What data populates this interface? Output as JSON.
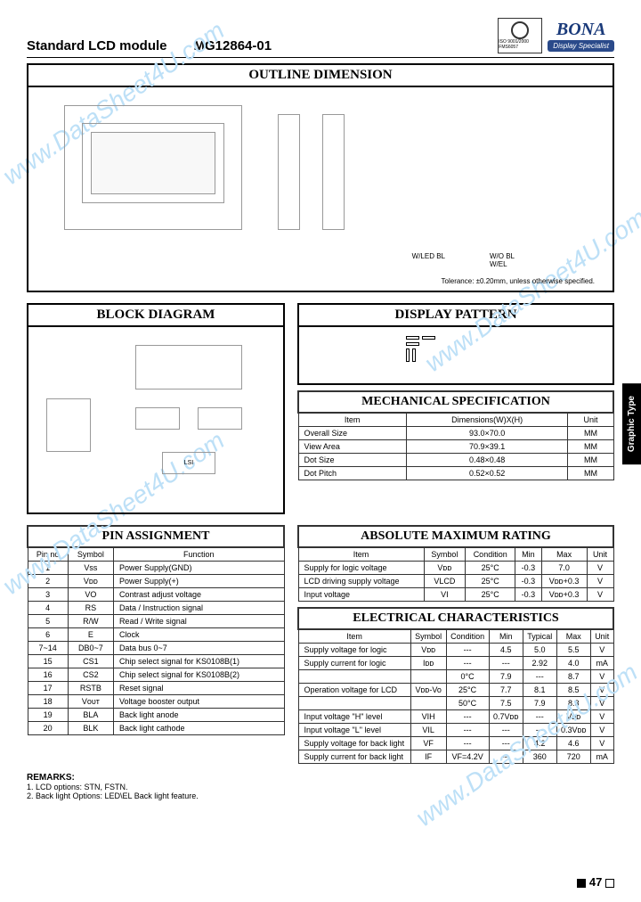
{
  "header": {
    "doc_title": "Standard LCD module",
    "part_no": "MG12864-01",
    "logo_name": "BONA",
    "logo_sub": "Display Specialist",
    "cert_text": "ISO 9001/2000 FMS6057"
  },
  "watermark": "www.DataSheet4U.com",
  "side_tab": "Graphic Type",
  "sections": {
    "outline": "OUTLINE DIMENSION",
    "block": "BLOCK DIAGRAM",
    "display": "DISPLAY PATTERN",
    "mech": "MECHANICAL SPECIFICATION",
    "pin": "PIN ASSIGNMENT",
    "abs": "ABSOLUTE MAXIMUM RATING",
    "elec": "ELECTRICAL CHARACTERISTICS"
  },
  "outline": {
    "tolerance": "Tolerance: ±0.20mm, unless otherwise specified.",
    "bl1": "W/LED BL",
    "bl2": "W/O BL\nW/EL"
  },
  "mech_spec": {
    "headers": [
      "Item",
      "Dimensions(W)X(H)",
      "Unit"
    ],
    "rows": [
      [
        "Overall Size",
        "93.0×70.0",
        "MM"
      ],
      [
        "View Area",
        "70.9×39.1",
        "MM"
      ],
      [
        "Dot Size",
        "0.48×0.48",
        "MM"
      ],
      [
        "Dot Pitch",
        "0.52×0.52",
        "MM"
      ]
    ]
  },
  "pin_assign": {
    "headers": [
      "Pin no",
      "Symbol",
      "Function"
    ],
    "rows": [
      [
        "1",
        "Vss",
        "Power Supply(GND)"
      ],
      [
        "2",
        "Vᴅᴅ",
        "Power Supply(+)"
      ],
      [
        "3",
        "VO",
        "Contrast adjust voltage"
      ],
      [
        "4",
        "RS",
        "Data / Instruction signal"
      ],
      [
        "5",
        "R/W",
        "Read / Write signal"
      ],
      [
        "6",
        "E",
        "Clock"
      ],
      [
        "7~14",
        "DB0~7",
        "Data bus 0~7"
      ],
      [
        "15",
        "CS1",
        "Chip select signal for KS0108B(1)"
      ],
      [
        "16",
        "CS2",
        "Chip select signal for KS0108B(2)"
      ],
      [
        "17",
        "RSTB",
        "Reset signal"
      ],
      [
        "18",
        "Vᴏᴜᴛ",
        "Voltage booster output"
      ],
      [
        "19",
        "BLA",
        "Back light anode"
      ],
      [
        "20",
        "BLK",
        "Back light cathode"
      ]
    ]
  },
  "abs_max": {
    "headers": [
      "Item",
      "Symbol",
      "Condition",
      "Min",
      "Max",
      "Unit"
    ],
    "rows": [
      [
        "Supply for logic voltage",
        "Vᴅᴅ",
        "25°C",
        "-0.3",
        "7.0",
        "V"
      ],
      [
        "LCD driving supply voltage",
        "VLCD",
        "25°C",
        "-0.3",
        "Vᴅᴅ+0.3",
        "V"
      ],
      [
        "Input voltage",
        "VI",
        "25°C",
        "-0.3",
        "Vᴅᴅ+0.3",
        "V"
      ]
    ]
  },
  "elec": {
    "headers": [
      "Item",
      "Symbol",
      "Condition",
      "Min",
      "Typical",
      "Max",
      "Unit"
    ],
    "rows": [
      [
        "Supply voltage for logic",
        "Vᴅᴅ",
        "---",
        "4.5",
        "5.0",
        "5.5",
        "V"
      ],
      [
        "Supply current for logic",
        "Iᴅᴅ",
        "---",
        "---",
        "2.92",
        "4.0",
        "mA"
      ],
      [
        "",
        "",
        "0°C",
        "7.9",
        "---",
        "8.7",
        "V"
      ],
      [
        "Operation voltage for LCD",
        "Vᴅᴅ-Vo",
        "25°C",
        "7.7",
        "8.1",
        "8.5",
        "V"
      ],
      [
        "",
        "",
        "50°C",
        "7.5",
        "7.9",
        "8.3",
        "V"
      ],
      [
        "Input voltage \"H\" level",
        "VIH",
        "---",
        "0.7Vᴅᴅ",
        "---",
        "Vᴅᴅ",
        "V"
      ],
      [
        "Input voltage \"L\" level",
        "VIL",
        "---",
        "---",
        "---",
        "0.3Vᴅᴅ",
        "V"
      ],
      [
        "Supply voltage for back light",
        "VF",
        "---",
        "---",
        "4.2",
        "4.6",
        "V"
      ],
      [
        "Supply current for back light",
        "IF",
        "VF=4.2V",
        "---",
        "360",
        "720",
        "mA"
      ]
    ]
  },
  "remarks": {
    "title": "REMARKS:",
    "lines": [
      "1. LCD options: STN, FSTN.",
      "2. Back light Options: LED\\EL Back light feature."
    ]
  },
  "page_no": "47",
  "colors": {
    "logo_blue": "#1a3a7a",
    "watermark": "#bde0f7",
    "border": "#000000"
  }
}
